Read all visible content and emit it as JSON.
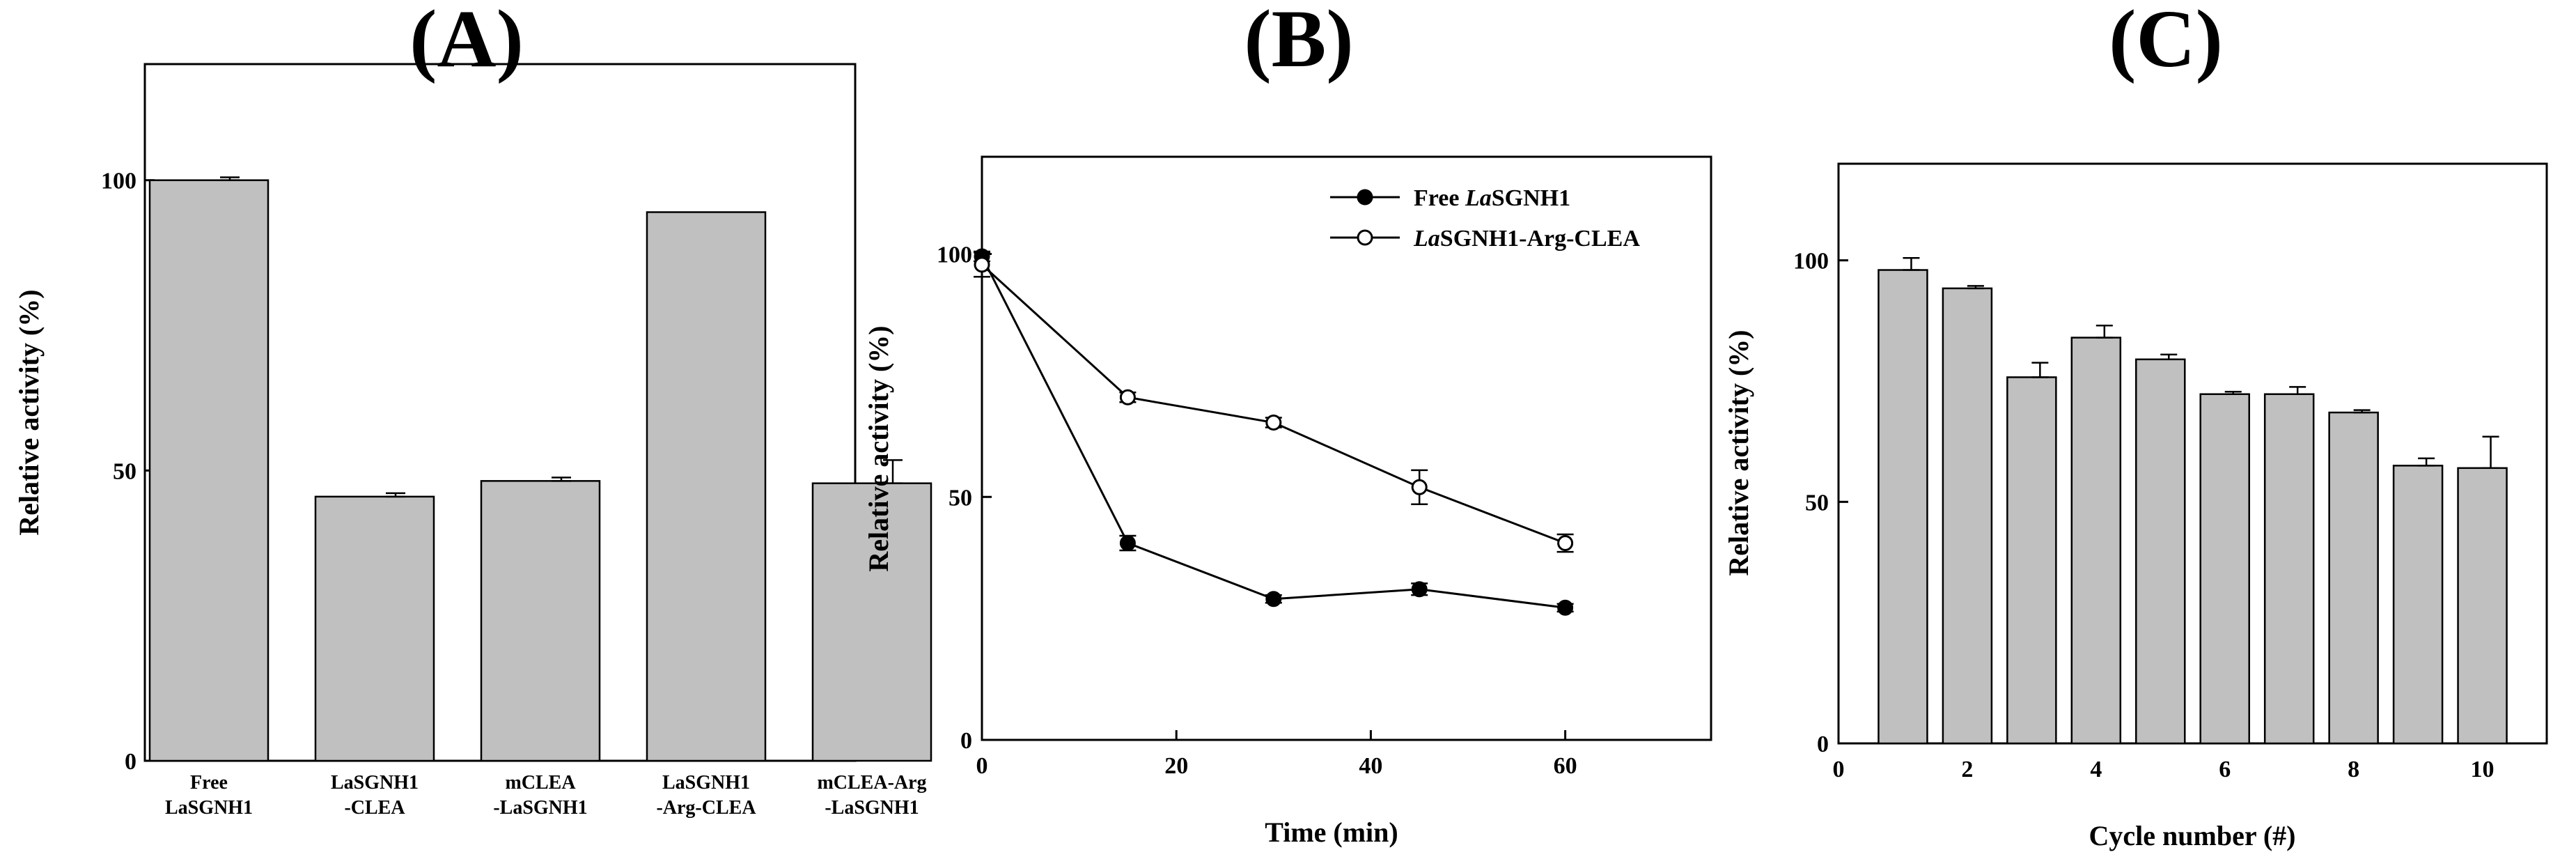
{
  "chart_data": [
    {
      "type": "bar",
      "panel_label": "(A)",
      "title": "",
      "xlabel": "",
      "ylabel": "Relative activity (%)",
      "ylim": [
        0,
        120
      ],
      "yticks": [
        0,
        50,
        100
      ],
      "categories": [
        [
          "Free",
          "LaSGNH1"
        ],
        [
          "LaSGNH1",
          "-CLEA"
        ],
        [
          "mCLEA",
          "-LaSGNH1"
        ],
        [
          "LaSGNH1",
          "-Arg-CLEA"
        ],
        [
          "mCLEA-Arg",
          "-LaSGNH1"
        ]
      ],
      "values": [
        100,
        45.5,
        48.2,
        94.5,
        47.8
      ],
      "errors": [
        0.5,
        0.6,
        0.6,
        0,
        4
      ]
    },
    {
      "type": "line",
      "panel_label": "(B)",
      "title": "",
      "xlabel": "Time (min)",
      "ylabel": "Relative activity (%)",
      "xlim": [
        0,
        75
      ],
      "ylim": [
        0,
        120
      ],
      "xticks": [
        0,
        20,
        40,
        60
      ],
      "yticks": [
        0,
        50,
        100
      ],
      "legend_position": "top-right",
      "series": [
        {
          "name": "Free LaSGNH1",
          "name_parts": [
            "Free ",
            "La",
            "SGNH1"
          ],
          "marker": "filled-circle",
          "x": [
            0,
            15,
            30,
            45,
            60
          ],
          "y": [
            99.5,
            40.5,
            29,
            31,
            27.2
          ],
          "errors": [
            1,
            1.5,
            0.8,
            1.2,
            0.8
          ]
        },
        {
          "name": "LaSGNH1-Arg-CLEA",
          "name_parts": [
            "",
            "La",
            "SGNH1-Arg-CLEA"
          ],
          "marker": "open-circle",
          "x": [
            0,
            15,
            30,
            45,
            60
          ],
          "y": [
            97.8,
            70.5,
            65.3,
            52,
            40.5
          ],
          "errors": [
            2.5,
            1,
            1,
            3.5,
            1.8
          ]
        }
      ]
    },
    {
      "type": "bar",
      "panel_label": "(C)",
      "title": "",
      "xlabel": "Cycle number (#)",
      "ylabel": "Relative activity (%)",
      "xlim": [
        0,
        11
      ],
      "ylim": [
        0,
        120
      ],
      "xticks": [
        0,
        2,
        4,
        6,
        8,
        10
      ],
      "yticks": [
        0,
        50,
        100
      ],
      "x": [
        1,
        2,
        3,
        4,
        5,
        6,
        7,
        8,
        9,
        10
      ],
      "values": [
        98,
        94.2,
        75.8,
        84,
        79.5,
        72.3,
        72.3,
        68.5,
        57.5,
        57
      ],
      "errors": [
        2.5,
        0.5,
        3,
        2.5,
        1,
        0.5,
        1.5,
        0.5,
        1.5,
        6.5
      ]
    }
  ]
}
